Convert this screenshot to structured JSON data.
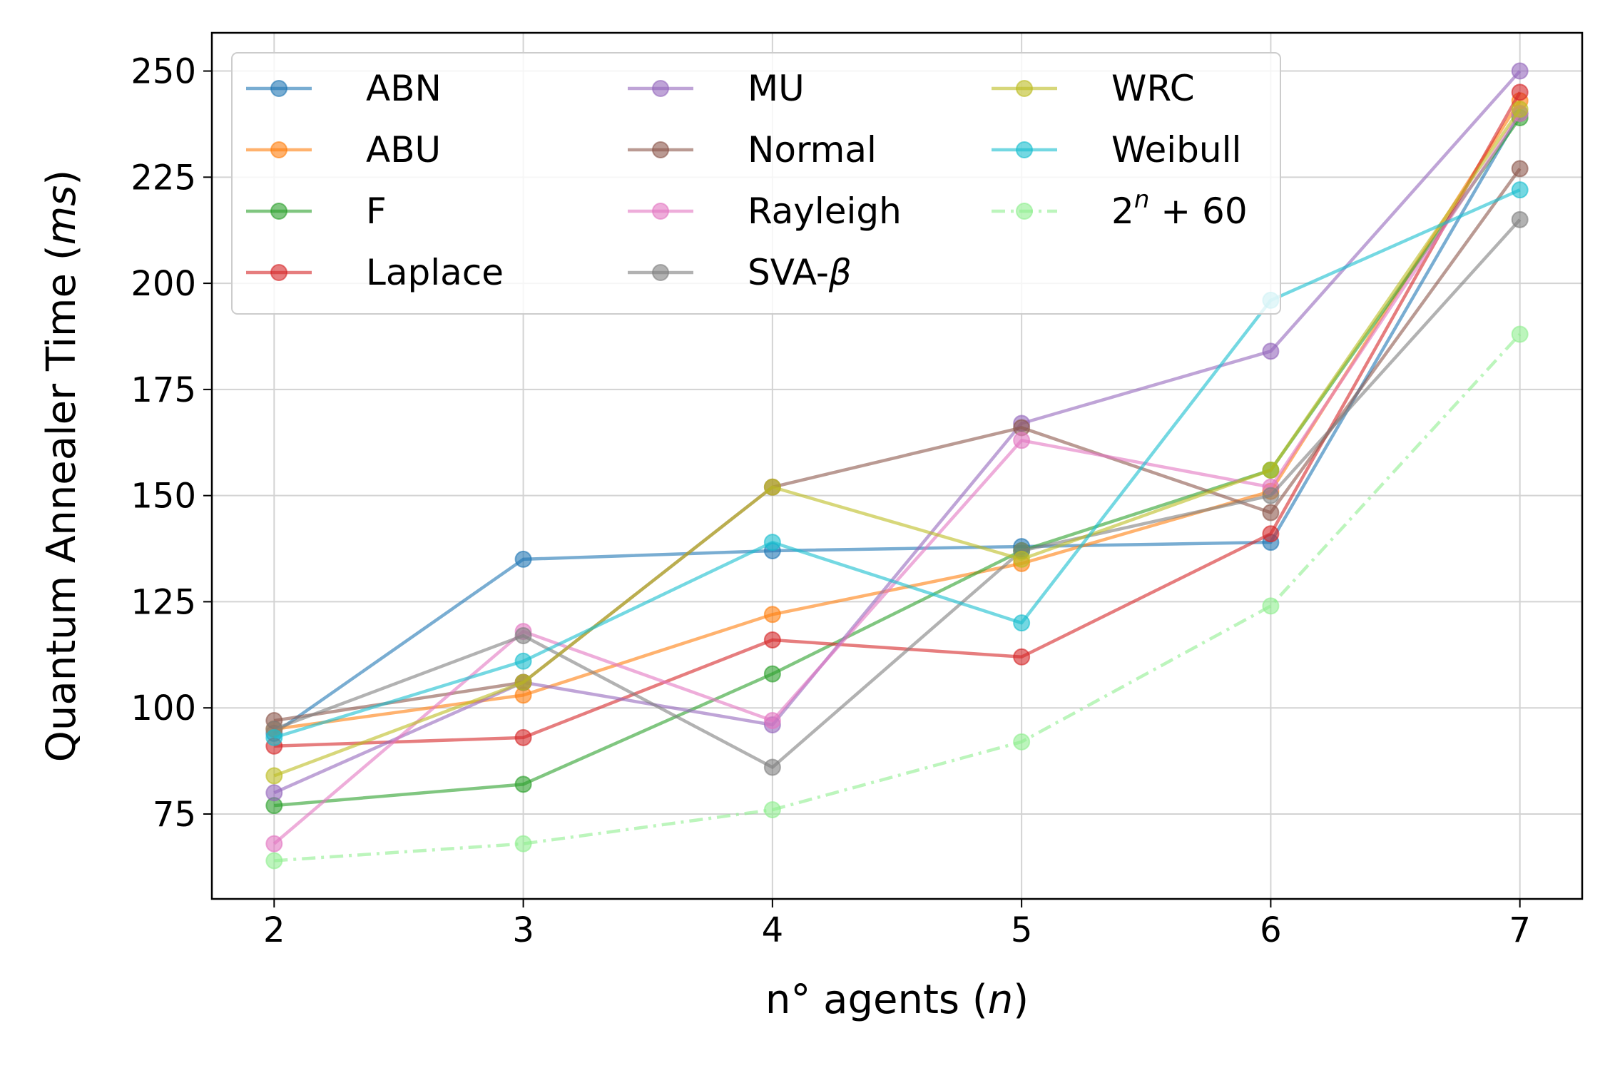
{
  "chart_data": {
    "type": "line",
    "xlabel": {
      "main": "n° agents (",
      "var": "n",
      "end": ")"
    },
    "ylabel": {
      "main": "Quantum Annealer Time (",
      "var": "ms",
      "end": ")"
    },
    "x": [
      2,
      3,
      4,
      5,
      6,
      7
    ],
    "xlim": [
      1.75,
      7.25
    ],
    "ylim": [
      55,
      259
    ],
    "xticks": [
      2,
      3,
      4,
      5,
      6,
      7
    ],
    "yticks": [
      75,
      100,
      125,
      150,
      175,
      200,
      225,
      250
    ],
    "grid": true,
    "legend_position": "top-left",
    "legend_columns": 3,
    "series": [
      {
        "name": "ABN",
        "color": "#1f77b4",
        "style": "solid",
        "values": [
          94,
          135,
          137,
          138,
          139,
          240
        ]
      },
      {
        "name": "ABU",
        "color": "#ff7f0e",
        "style": "solid",
        "values": [
          95,
          103,
          122,
          134,
          151,
          243
        ]
      },
      {
        "name": "F",
        "color": "#2ca02c",
        "style": "solid",
        "values": [
          77,
          82,
          108,
          137,
          156,
          239
        ]
      },
      {
        "name": "Laplace",
        "color": "#d62728",
        "style": "solid",
        "values": [
          91,
          93,
          116,
          112,
          141,
          245
        ]
      },
      {
        "name": "MU",
        "color": "#9467bd",
        "style": "solid",
        "values": [
          80,
          106,
          96,
          167,
          184,
          250
        ]
      },
      {
        "name": "Normal",
        "color": "#8c564b",
        "style": "solid",
        "values": [
          97,
          106,
          152,
          166,
          146,
          227
        ]
      },
      {
        "name": "Rayleigh",
        "color": "#e377c2",
        "style": "solid",
        "values": [
          68,
          118,
          97,
          163,
          152,
          240
        ]
      },
      {
        "name": "SVA-",
        "name_symbol": "β",
        "color": "#7f7f7f",
        "style": "solid",
        "values": [
          95,
          117,
          86,
          137,
          150,
          215
        ]
      },
      {
        "name": "WRC",
        "color": "#bcbd22",
        "style": "solid",
        "values": [
          84,
          106,
          152,
          135,
          156,
          241
        ]
      },
      {
        "name": "Weibull",
        "color": "#17becf",
        "style": "solid",
        "values": [
          93,
          111,
          139,
          120,
          196,
          222
        ]
      },
      {
        "name": "2",
        "name_sup": "n",
        "name_rest": " + 60",
        "color": "#90ee90",
        "style": "dashdot",
        "values": [
          64,
          68,
          76,
          92,
          124,
          188
        ]
      }
    ]
  }
}
